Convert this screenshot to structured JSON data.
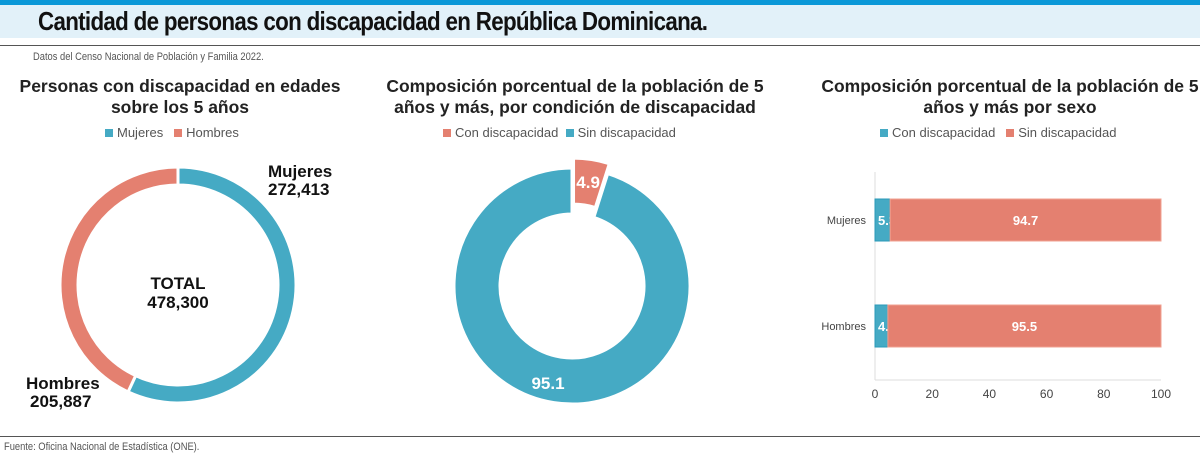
{
  "header": {
    "title": "Cantidad de personas con discapacidad en República Dominicana.",
    "subtitle": "Datos del Censo Nacional de Población y Familia 2022.",
    "source": "Fuente: Oficina Nacional de Estadística (ONE)."
  },
  "colors": {
    "teal": "#45aac4",
    "salmon": "#e48070",
    "accent": "#0a98d8"
  },
  "chart_data": [
    {
      "type": "pie",
      "variant": "donut",
      "title": "Personas con discapacidad en edades sobre los 5 años",
      "legend": [
        "Mujeres",
        "Hombres"
      ],
      "slices": [
        {
          "name": "Mujeres",
          "value": 272413,
          "label": "272,413"
        },
        {
          "name": "Hombres",
          "value": 205887,
          "label": "205,887"
        }
      ],
      "center_label": "TOTAL",
      "center_value": "478,300"
    },
    {
      "type": "pie",
      "variant": "donut",
      "title": "Composición porcentual de la población de 5 años y más, por condición de discapacidad",
      "legend": [
        "Con discapacidad",
        "Sin discapacidad"
      ],
      "slices": [
        {
          "name": "Con discapacidad",
          "value": 4.9,
          "label": "4.9",
          "exploded": true
        },
        {
          "name": "Sin discapacidad",
          "value": 95.1,
          "label": "95.1"
        }
      ]
    },
    {
      "type": "bar",
      "orientation": "horizontal",
      "stacked": true,
      "title": "Composición porcentual de la población de 5 años y más por sexo",
      "legend": [
        "Con discapacidad",
        "Sin discapacidad"
      ],
      "categories": [
        "Mujeres",
        "Hombres"
      ],
      "series": [
        {
          "name": "Con discapacidad",
          "values": [
            5.3,
            4.5
          ]
        },
        {
          "name": "Sin discapacidad",
          "values": [
            94.7,
            95.5
          ]
        }
      ],
      "xlim": [
        0,
        100
      ],
      "xticks": [
        "0",
        "20",
        "40",
        "60",
        "80",
        "100"
      ],
      "grid": false
    }
  ]
}
